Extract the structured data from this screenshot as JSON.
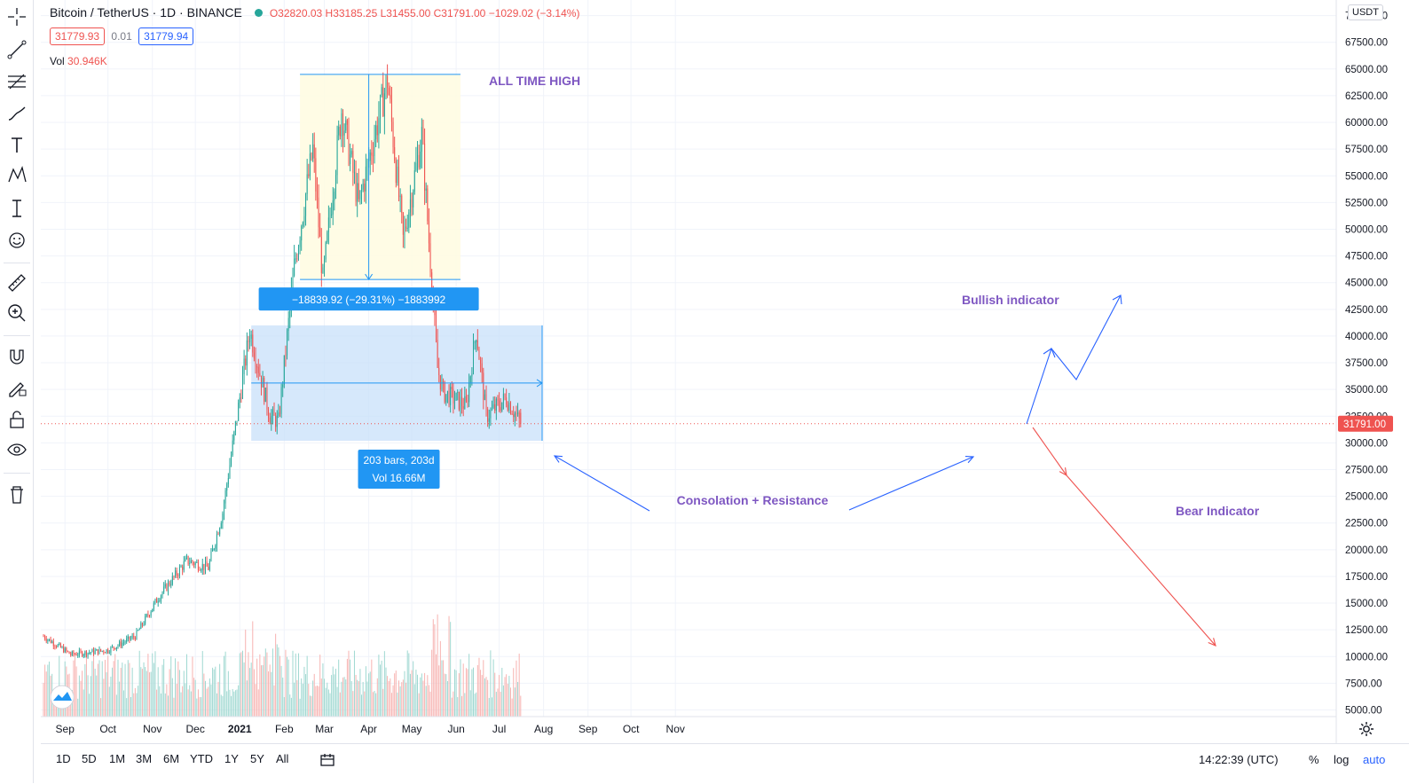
{
  "header": {
    "symbol": "Bitcoin / TetherUS · 1D · BINANCE",
    "ohlc": "O32820.03 H33185.25 L31455.00 C31791.00 −1029.02 (−3.14%)"
  },
  "pricebox": {
    "bid": "31779.93",
    "spread": "0.01",
    "ask": "31779.94"
  },
  "volume": {
    "label": "Vol",
    "value": "30.946K"
  },
  "currency_button": "USDT",
  "toolbar": {
    "tools": [
      "crosshair-icon",
      "trendline-icon",
      "fib-icon",
      "brush-icon",
      "text-icon",
      "pattern-icon",
      "measure-tool-icon",
      "emoji-icon",
      "ruler-icon",
      "zoom-in-icon",
      "magnet-icon",
      "lock-drawing-icon",
      "lock-icon",
      "eye-icon",
      "trash-icon"
    ]
  },
  "bottom": {
    "ranges": [
      "1D",
      "5D",
      "1M",
      "3M",
      "6M",
      "YTD",
      "1Y",
      "5Y",
      "All"
    ],
    "clock": "14:22:39 (UTC)",
    "percent": "%",
    "log": "log",
    "auto": "auto"
  },
  "annotations": {
    "ath": "ALL TIME HIGH",
    "bullish": "Bullish indicator",
    "bear": "Bear Indicator",
    "consolidation": "Consolation + Resistance",
    "measure_label": "−18839.92 (−29.31%) −1883992",
    "range_label_1": "203 bars, 203d",
    "range_label_2": "Vol 16.66M",
    "last_price": "31791.00"
  },
  "colors": {
    "up": "#26a69a",
    "down": "#ef5350",
    "ath_box": "#fffbe0",
    "range_box": "#c8e0fa",
    "arrow_blue": "#2962ff",
    "text_purple": "#7e57c2"
  },
  "chart_data": {
    "type": "candlestick",
    "title": "",
    "xlabel": "",
    "ylabel": "",
    "x_ticks": [
      "Sep",
      "Oct",
      "Nov",
      "Dec",
      "2021",
      "Feb",
      "Mar",
      "Apr",
      "May",
      "Jun",
      "Jul",
      "Aug",
      "Sep",
      "Oct",
      "Nov"
    ],
    "y_ticks": [
      "5000.00",
      "7500.00",
      "10000.00",
      "12500.00",
      "15000.00",
      "17500.00",
      "20000.00",
      "22500.00",
      "25000.00",
      "27500.00",
      "30000.00",
      "32500.00",
      "35000.00",
      "37500.00",
      "40000.00",
      "42500.00",
      "45000.00",
      "47500.00",
      "50000.00",
      "52500.00",
      "55000.00",
      "57500.00",
      "60000.00",
      "62500.00",
      "65000.00",
      "67500.00",
      "70000.00"
    ],
    "ylim": [
      4000,
      71500
    ],
    "series": [
      {
        "name": "BTCUSDT",
        "keypoints": [
          {
            "date": "2020-08-17",
            "close": 11900
          },
          {
            "date": "2020-09-05",
            "close": 10200
          },
          {
            "date": "2020-10-01",
            "close": 10600
          },
          {
            "date": "2020-10-20",
            "close": 11900
          },
          {
            "date": "2020-11-05",
            "close": 15500
          },
          {
            "date": "2020-11-25",
            "close": 19000
          },
          {
            "date": "2020-12-10",
            "close": 18300
          },
          {
            "date": "2020-12-20",
            "close": 23500
          },
          {
            "date": "2021-01-08",
            "close": 40500
          },
          {
            "date": "2021-01-22",
            "close": 32500
          },
          {
            "date": "2021-01-28",
            "close": 32000
          },
          {
            "date": "2021-02-08",
            "close": 46500
          },
          {
            "date": "2021-02-21",
            "close": 57500
          },
          {
            "date": "2021-02-28",
            "close": 45200
          },
          {
            "date": "2021-03-13",
            "close": 61200
          },
          {
            "date": "2021-03-25",
            "close": 52300
          },
          {
            "date": "2021-04-14",
            "close": 64000
          },
          {
            "date": "2021-04-25",
            "close": 49000
          },
          {
            "date": "2021-05-08",
            "close": 58800
          },
          {
            "date": "2021-05-19",
            "close": 37000
          },
          {
            "date": "2021-05-23",
            "close": 34700
          },
          {
            "date": "2021-06-08",
            "close": 33500
          },
          {
            "date": "2021-06-15",
            "close": 40500
          },
          {
            "date": "2021-06-22",
            "close": 32500
          },
          {
            "date": "2021-07-06",
            "close": 34200
          },
          {
            "date": "2021-07-16",
            "close": 31791
          }
        ]
      }
    ]
  }
}
